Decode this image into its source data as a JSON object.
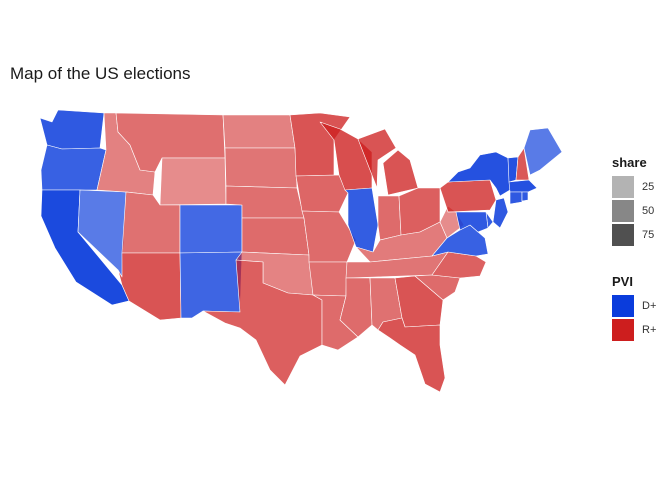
{
  "title": "Map of the US elections",
  "chart_data": {
    "type": "choropleth",
    "region": "United States (contiguous)",
    "title": "Map of the US elections",
    "fill_variable": "PVI",
    "alpha_variable": "share",
    "color_scale": {
      "D+": "#0a3cdc",
      "R+": "#cd1e1e"
    },
    "regions": [
      {
        "state": "Washington",
        "pvi": "D+",
        "share": 80
      },
      {
        "state": "Oregon",
        "pvi": "D+",
        "share": 75
      },
      {
        "state": "California",
        "pvi": "D+",
        "share": 90
      },
      {
        "state": "Nevada",
        "pvi": "D+",
        "share": 58
      },
      {
        "state": "Idaho",
        "pvi": "R+",
        "share": 42
      },
      {
        "state": "Montana",
        "pvi": "R+",
        "share": 52
      },
      {
        "state": "Wyoming",
        "pvi": "R+",
        "share": 35
      },
      {
        "state": "Utah",
        "pvi": "R+",
        "share": 50
      },
      {
        "state": "Arizona",
        "pvi": "R+",
        "share": 68
      },
      {
        "state": "Colorado",
        "pvi": "D+",
        "share": 70
      },
      {
        "state": "New Mexico",
        "pvi": "D+",
        "share": 72
      },
      {
        "state": "North Dakota",
        "pvi": "R+",
        "share": 42
      },
      {
        "state": "South Dakota",
        "pvi": "R+",
        "share": 48
      },
      {
        "state": "Nebraska",
        "pvi": "R+",
        "share": 52
      },
      {
        "state": "Kansas",
        "pvi": "R+",
        "share": 55
      },
      {
        "state": "Oklahoma",
        "pvi": "R+",
        "share": 40
      },
      {
        "state": "Texas",
        "pvi": "R+",
        "share": 62
      },
      {
        "state": "Minnesota",
        "pvi": "R+",
        "share": 68
      },
      {
        "state": "Iowa",
        "pvi": "R+",
        "share": 58
      },
      {
        "state": "Missouri",
        "pvi": "R+",
        "share": 55
      },
      {
        "state": "Arkansas",
        "pvi": "R+",
        "share": 52
      },
      {
        "state": "Louisiana",
        "pvi": "R+",
        "share": 55
      },
      {
        "state": "Wisconsin",
        "pvi": "R+",
        "share": 72
      },
      {
        "state": "Illinois",
        "pvi": "D+",
        "share": 78
      },
      {
        "state": "Michigan",
        "pvi": "R+",
        "share": 68
      },
      {
        "state": "Indiana",
        "pvi": "R+",
        "share": 55
      },
      {
        "state": "Ohio",
        "pvi": "R+",
        "share": 62
      },
      {
        "state": "Kentucky",
        "pvi": "R+",
        "share": 45
      },
      {
        "state": "Tennessee",
        "pvi": "R+",
        "share": 48
      },
      {
        "state": "Mississippi",
        "pvi": "R+",
        "share": 55
      },
      {
        "state": "Alabama",
        "pvi": "R+",
        "share": 50
      },
      {
        "state": "Georgia",
        "pvi": "R+",
        "share": 68
      },
      {
        "state": "Florida",
        "pvi": "R+",
        "share": 68
      },
      {
        "state": "South Carolina",
        "pvi": "R+",
        "share": 55
      },
      {
        "state": "North Carolina",
        "pvi": "R+",
        "share": 60
      },
      {
        "state": "Virginia",
        "pvi": "D+",
        "share": 75
      },
      {
        "state": "West Virginia",
        "pvi": "R+",
        "share": 35
      },
      {
        "state": "Pennsylvania",
        "pvi": "R+",
        "share": 68
      },
      {
        "state": "New York",
        "pvi": "D+",
        "share": 85
      },
      {
        "state": "Vermont",
        "pvi": "D+",
        "share": 85
      },
      {
        "state": "New Hampshire",
        "pvi": "R+",
        "share": 65
      },
      {
        "state": "Maine",
        "pvi": "D+",
        "share": 58
      },
      {
        "state": "Massachusetts",
        "pvi": "D+",
        "share": 85
      },
      {
        "state": "Connecticut",
        "pvi": "D+",
        "share": 80
      },
      {
        "state": "Rhode Island",
        "pvi": "D+",
        "share": 80
      },
      {
        "state": "New Jersey",
        "pvi": "D+",
        "share": 80
      },
      {
        "state": "Delaware",
        "pvi": "D+",
        "share": 78
      },
      {
        "state": "Maryland",
        "pvi": "D+",
        "share": 80
      }
    ],
    "legend": {
      "share": {
        "title": "share",
        "items": [
          {
            "label": "25",
            "color": "#b3b3b3"
          },
          {
            "label": "50",
            "color": "#878787"
          },
          {
            "label": "75",
            "color": "#505050"
          }
        ]
      },
      "pvi": {
        "title": "PVI",
        "items": [
          {
            "label": "D+",
            "color": "#0a3cdc"
          },
          {
            "label": "R+",
            "color": "#cd1e1e"
          }
        ]
      }
    }
  }
}
